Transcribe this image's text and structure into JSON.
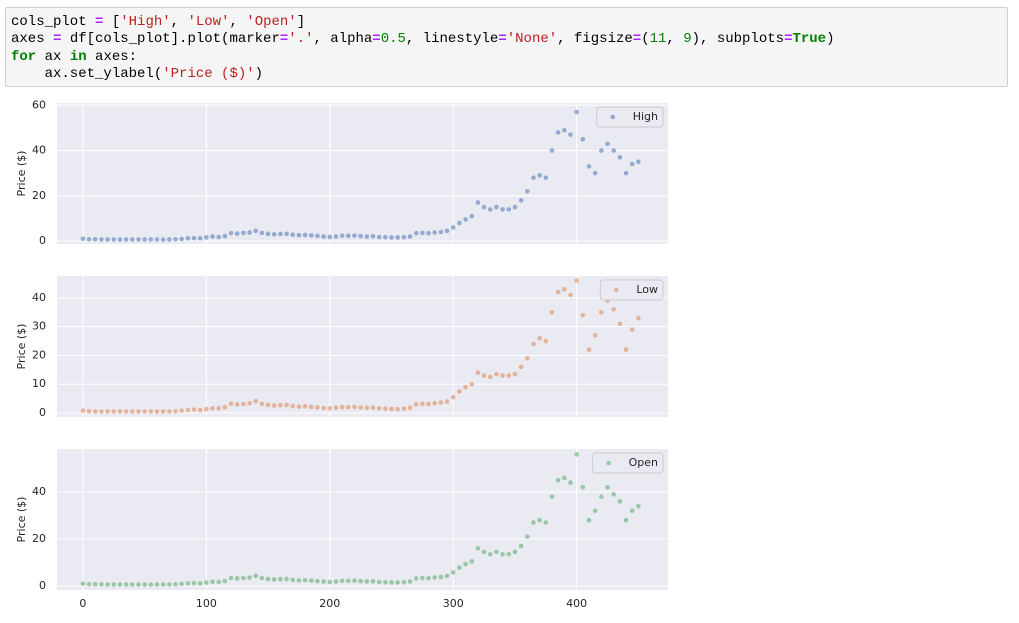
{
  "code": {
    "lines": [
      [
        "cols_plot ",
        "=",
        " [",
        "'High'",
        ", ",
        "'Low'",
        ", ",
        "'Open'",
        "]"
      ],
      [
        "axes ",
        "=",
        " df[cols_plot].plot(marker",
        "=",
        "'.'",
        ", alpha",
        "=",
        "0.5",
        ", linestyle",
        "=",
        "'None'",
        ", figsize",
        "=",
        "(",
        "11",
        ", ",
        "9",
        "), subplots",
        "=",
        "True",
        ")"
      ],
      [
        "for",
        " ax ",
        "in",
        " axes:"
      ],
      [
        "    ax.set_ylabel(",
        "'Price ($)'",
        ")"
      ]
    ]
  },
  "chart_data": [
    {
      "type": "scatter",
      "ylabel": "Price ($)",
      "grid": true,
      "legend": "upper right",
      "xlim": [
        -21,
        474
      ],
      "ylim": [
        -1.3,
        61
      ],
      "yticks": [
        0,
        20,
        40,
        60
      ],
      "x": [
        0,
        5,
        10,
        15,
        20,
        25,
        30,
        35,
        40,
        45,
        50,
        55,
        60,
        65,
        70,
        75,
        80,
        85,
        90,
        95,
        100,
        105,
        110,
        115,
        120,
        125,
        130,
        135,
        140,
        145,
        150,
        155,
        160,
        165,
        170,
        175,
        180,
        185,
        190,
        195,
        200,
        205,
        210,
        215,
        220,
        225,
        230,
        235,
        240,
        245,
        250,
        255,
        260,
        265,
        270,
        275,
        280,
        285,
        290,
        295,
        300,
        305,
        310,
        315,
        320,
        325,
        330,
        335,
        340,
        345,
        350,
        355,
        360,
        365,
        370,
        375,
        380,
        385,
        390,
        395,
        400,
        405,
        410,
        415,
        420,
        425,
        430,
        435,
        440,
        445,
        450
      ],
      "series": [
        {
          "name": "High",
          "color": "#4c72b0",
          "values": [
            1,
            0.8,
            0.8,
            0.7,
            0.7,
            0.7,
            0.7,
            0.7,
            0.7,
            0.7,
            0.7,
            0.7,
            0.7,
            0.6,
            0.7,
            0.8,
            0.9,
            1.2,
            1.3,
            1.2,
            1.6,
            2,
            1.8,
            2.2,
            3.5,
            3.3,
            3.6,
            3.8,
            4.5,
            3.6,
            3.2,
            3,
            3.1,
            3.2,
            2.8,
            2.6,
            2.7,
            2.5,
            2.3,
            2,
            1.8,
            2,
            2.4,
            2.3,
            2.4,
            2.2,
            2,
            2.1,
            1.8,
            1.7,
            1.6,
            1.6,
            1.7,
            2,
            3.5,
            3.6,
            3.5,
            3.8,
            4,
            4.5,
            6,
            8,
            9.5,
            11,
            17,
            15,
            14,
            15,
            14,
            14,
            15,
            18,
            22,
            28,
            29,
            28,
            40,
            48,
            49,
            47,
            57,
            45,
            33,
            30,
            40,
            43,
            40,
            37,
            30,
            34,
            35
          ]
        }
      ]
    },
    {
      "type": "scatter",
      "ylabel": "Price ($)",
      "grid": true,
      "legend": "upper right",
      "xlim": [
        -21,
        474
      ],
      "ylim": [
        -1.4,
        47.6
      ],
      "yticks": [
        0,
        10,
        20,
        30,
        40
      ],
      "x": [
        0,
        5,
        10,
        15,
        20,
        25,
        30,
        35,
        40,
        45,
        50,
        55,
        60,
        65,
        70,
        75,
        80,
        85,
        90,
        95,
        100,
        105,
        110,
        115,
        120,
        125,
        130,
        135,
        140,
        145,
        150,
        155,
        160,
        165,
        170,
        175,
        180,
        185,
        190,
        195,
        200,
        205,
        210,
        215,
        220,
        225,
        230,
        235,
        240,
        245,
        250,
        255,
        260,
        265,
        270,
        275,
        280,
        285,
        290,
        295,
        300,
        305,
        310,
        315,
        320,
        325,
        330,
        335,
        340,
        345,
        350,
        355,
        360,
        365,
        370,
        375,
        380,
        385,
        390,
        395,
        400,
        405,
        410,
        415,
        420,
        425,
        430,
        435,
        440,
        445,
        450
      ],
      "series": [
        {
          "name": "Low",
          "color": "#dd8452",
          "values": [
            0.8,
            0.6,
            0.5,
            0.5,
            0.5,
            0.5,
            0.5,
            0.5,
            0.5,
            0.5,
            0.5,
            0.5,
            0.5,
            0.5,
            0.5,
            0.6,
            0.8,
            1,
            1.2,
            1,
            1.3,
            1.6,
            1.6,
            2,
            3.2,
            3,
            3.1,
            3.4,
            4.1,
            3.2,
            2.8,
            2.6,
            2.7,
            2.8,
            2.4,
            2.2,
            2.3,
            2.1,
            1.9,
            1.7,
            1.6,
            1.8,
            2,
            2,
            2.1,
            1.9,
            1.8,
            1.8,
            1.6,
            1.5,
            1.4,
            1.3,
            1.5,
            1.8,
            3,
            3.2,
            3.1,
            3.4,
            3.6,
            4,
            5.5,
            7.5,
            9,
            10,
            14,
            13,
            12.5,
            13.5,
            13,
            13,
            13.5,
            16,
            19,
            24,
            26,
            25,
            35,
            42,
            43,
            41,
            46,
            34,
            22,
            27,
            35,
            39,
            36,
            31,
            22,
            29,
            33
          ]
        }
      ]
    },
    {
      "type": "scatter",
      "ylabel": "Price ($)",
      "grid": true,
      "legend": "upper right",
      "xlim": [
        -21,
        474
      ],
      "ylim": [
        -1.7,
        58.3
      ],
      "yticks": [
        0,
        20,
        40
      ],
      "xticks": [
        0,
        100,
        200,
        300,
        400
      ],
      "x": [
        0,
        5,
        10,
        15,
        20,
        25,
        30,
        35,
        40,
        45,
        50,
        55,
        60,
        65,
        70,
        75,
        80,
        85,
        90,
        95,
        100,
        105,
        110,
        115,
        120,
        125,
        130,
        135,
        140,
        145,
        150,
        155,
        160,
        165,
        170,
        175,
        180,
        185,
        190,
        195,
        200,
        205,
        210,
        215,
        220,
        225,
        230,
        235,
        240,
        245,
        250,
        255,
        260,
        265,
        270,
        275,
        280,
        285,
        290,
        295,
        300,
        305,
        310,
        315,
        320,
        325,
        330,
        335,
        340,
        345,
        350,
        355,
        360,
        365,
        370,
        375,
        380,
        385,
        390,
        395,
        400,
        405,
        410,
        415,
        420,
        425,
        430,
        435,
        440,
        445,
        450
      ],
      "series": [
        {
          "name": "Open",
          "color": "#55a868",
          "values": [
            1,
            0.8,
            0.7,
            0.7,
            0.6,
            0.6,
            0.6,
            0.6,
            0.6,
            0.6,
            0.6,
            0.6,
            0.6,
            0.6,
            0.6,
            0.7,
            0.9,
            1.1,
            1.2,
            1.1,
            1.5,
            1.8,
            1.7,
            2.1,
            3.4,
            3.2,
            3.4,
            3.6,
            4.3,
            3.4,
            3,
            2.8,
            2.9,
            3,
            2.6,
            2.4,
            2.5,
            2.3,
            2.1,
            1.9,
            1.7,
            1.9,
            2.2,
            2.2,
            2.3,
            2.1,
            1.9,
            2,
            1.7,
            1.6,
            1.5,
            1.5,
            1.6,
            1.9,
            3.2,
            3.4,
            3.3,
            3.6,
            3.8,
            4.3,
            5.8,
            7.8,
            9.3,
            10.5,
            16,
            14.5,
            13.5,
            14.5,
            13.5,
            13.5,
            14.5,
            17,
            21,
            27,
            28,
            27,
            38,
            45,
            46,
            44,
            56,
            42,
            28,
            32,
            38,
            42,
            39,
            36,
            28,
            32,
            34
          ]
        }
      ]
    }
  ]
}
